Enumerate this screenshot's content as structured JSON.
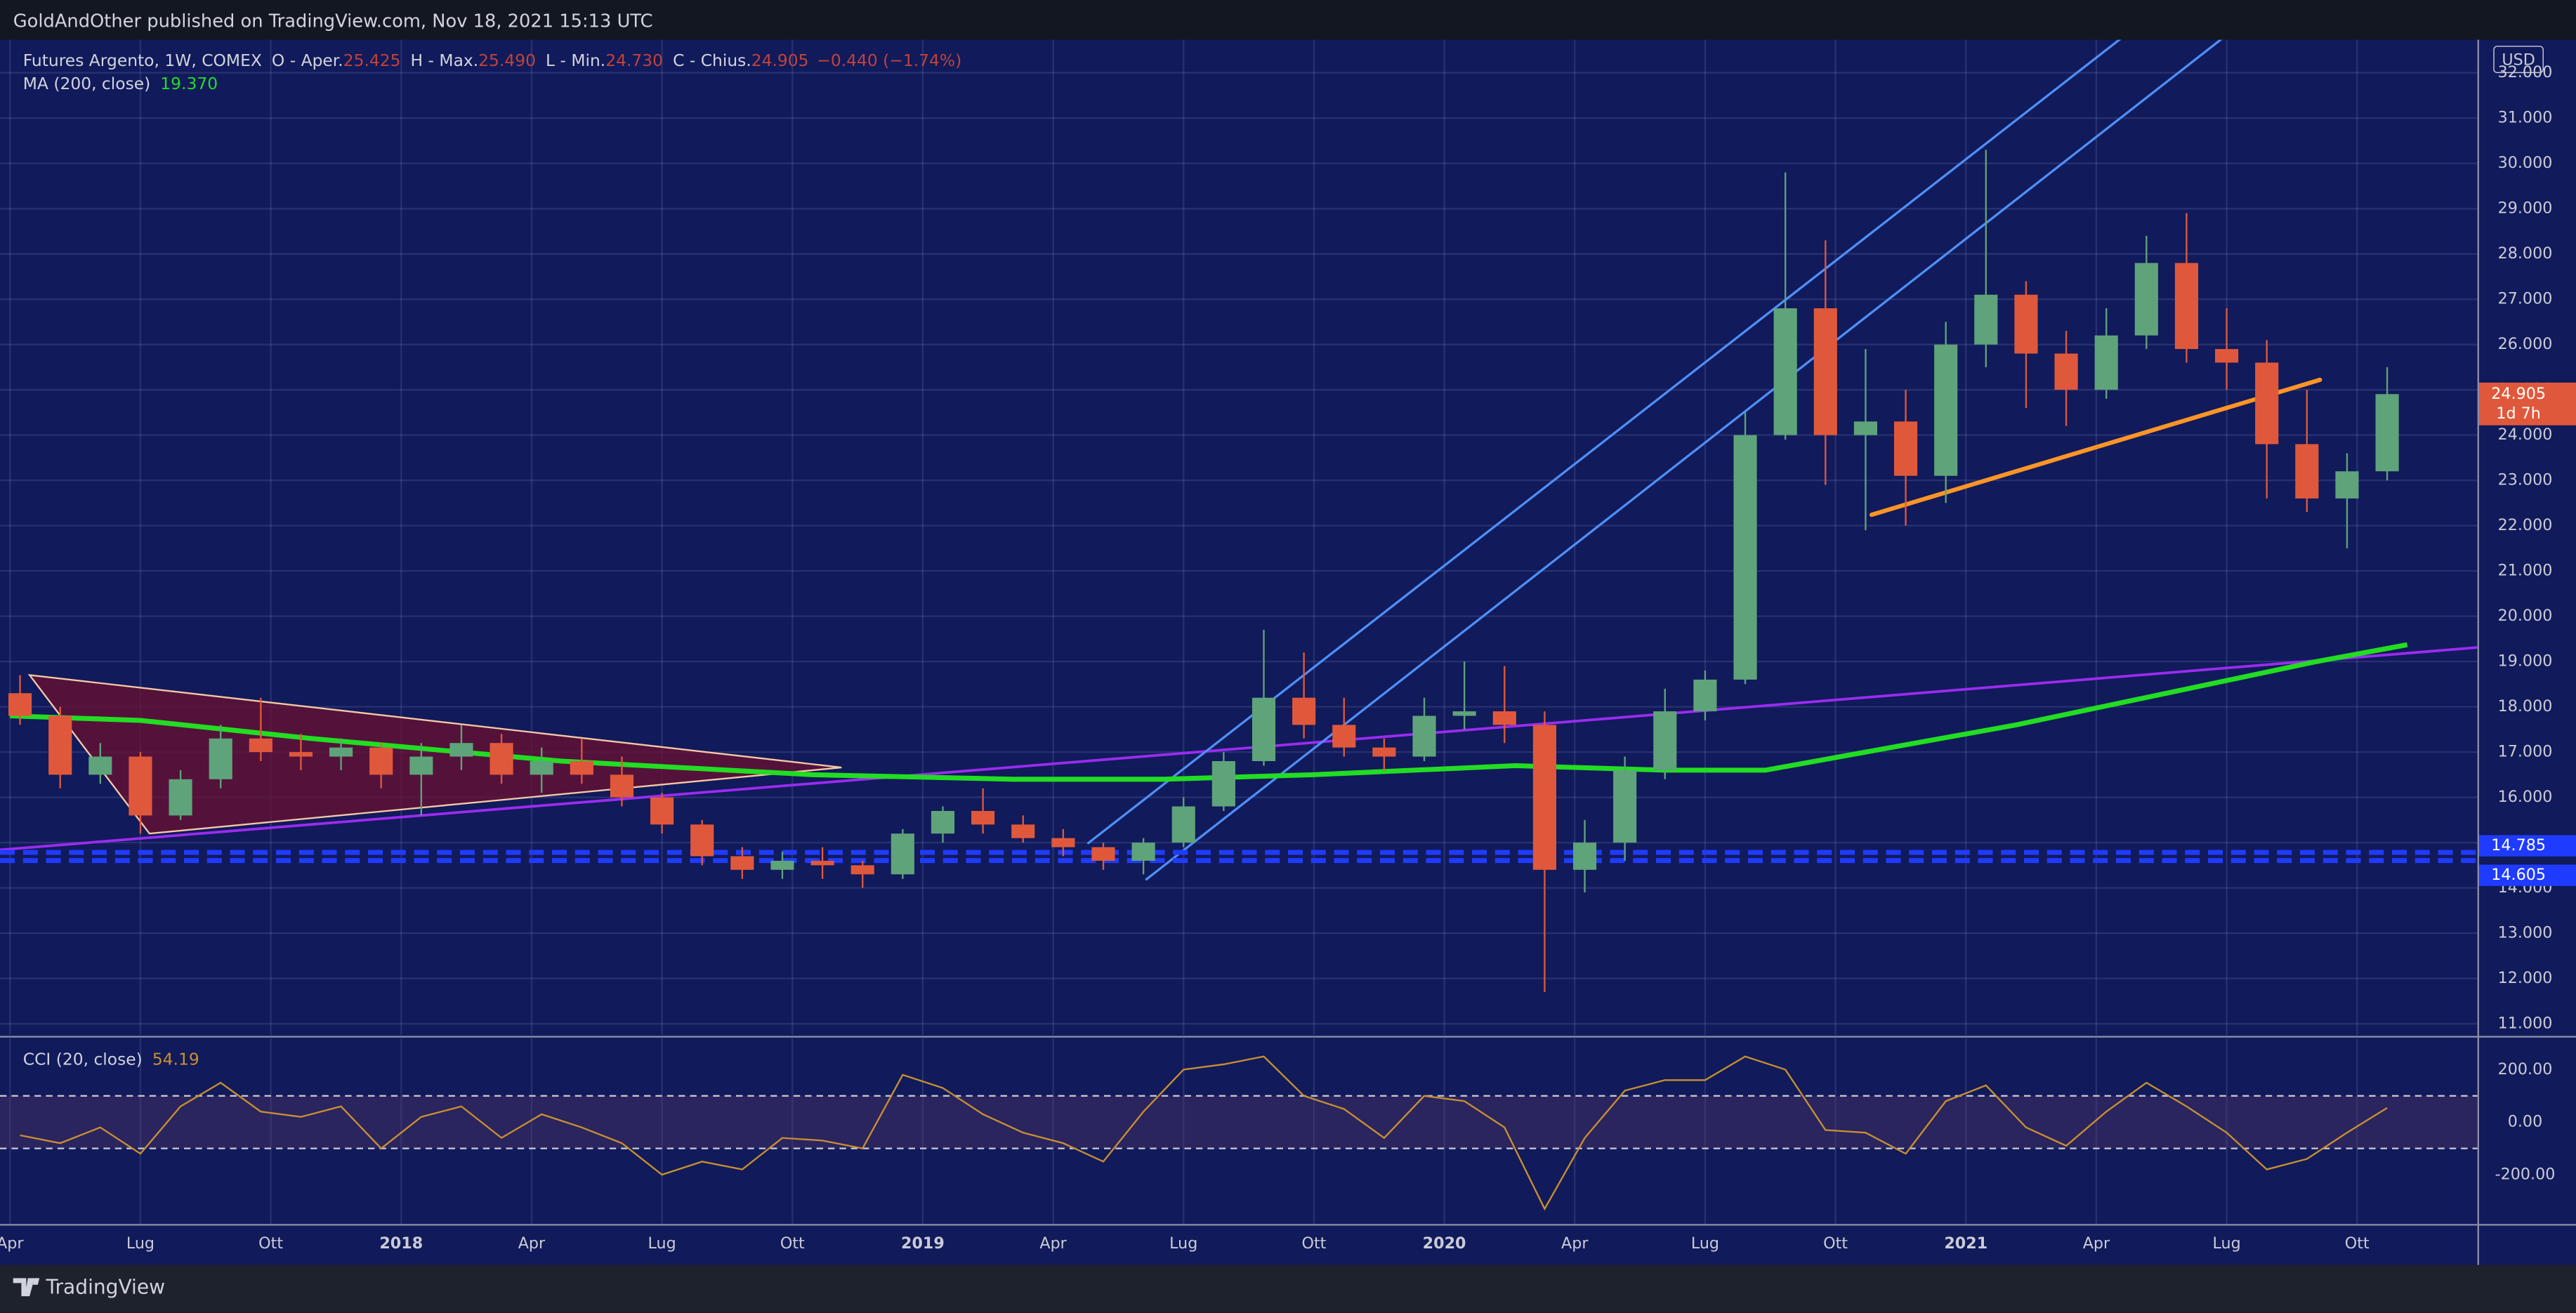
{
  "header": {
    "published": "GoldAndOther published on TradingView.com, Nov 18, 2021 15:13 UTC"
  },
  "legend": {
    "symbol": "Futures Argento, 1W, COMEX",
    "open_label": "O - Aper.",
    "open": "25.425",
    "high_label": "H - Max.",
    "high": "25.490",
    "low_label": "L - Min.",
    "low": "24.730",
    "close_label": "C - Chius.",
    "close": "24.905",
    "change": "−0.440 (−1.74%)",
    "ma_label": "MA (200, close)",
    "ma_value": "19.370"
  },
  "footer": {
    "brand": "TradingView"
  },
  "chart_data": {
    "type": "candlestick",
    "currency": "USD",
    "up_color": "#5fa37a",
    "down_color": "#e0583b",
    "x": [
      1,
      5,
      9,
      13,
      17,
      21,
      25,
      29,
      33,
      37,
      41,
      45,
      49,
      53,
      57,
      61,
      65,
      69,
      73,
      77,
      81,
      85,
      89,
      93,
      97,
      101,
      105,
      109,
      113,
      117,
      121,
      125,
      129,
      133,
      137,
      141,
      145,
      149,
      153,
      157,
      161,
      165,
      169,
      173,
      177,
      181,
      185,
      189,
      193,
      197,
      201,
      205,
      209,
      213,
      217,
      221,
      225,
      229,
      233,
      237
    ],
    "open": [
      18.3,
      17.8,
      16.5,
      16.9,
      15.6,
      16.4,
      17.3,
      17.0,
      16.9,
      17.1,
      16.5,
      16.9,
      17.2,
      16.5,
      16.8,
      16.5,
      16.0,
      15.4,
      14.7,
      14.4,
      14.6,
      14.5,
      14.3,
      15.2,
      15.7,
      15.4,
      15.1,
      14.9,
      14.6,
      15.0,
      15.8,
      16.8,
      18.2,
      17.6,
      17.1,
      16.9,
      17.8,
      17.9,
      17.6,
      14.4,
      15.0,
      16.6,
      17.9,
      18.6,
      24.0,
      26.8,
      24.0,
      24.3,
      23.1,
      26.0,
      27.1,
      25.8,
      25.0,
      26.2,
      27.8,
      25.9,
      25.6,
      23.8,
      22.6,
      23.2
    ],
    "high": [
      18.7,
      18.0,
      17.2,
      17.0,
      16.6,
      17.6,
      18.2,
      17.4,
      17.3,
      17.2,
      17.2,
      17.6,
      17.4,
      17.1,
      17.3,
      16.9,
      16.1,
      15.5,
      14.9,
      14.8,
      14.9,
      14.6,
      15.3,
      15.8,
      16.2,
      15.6,
      15.3,
      15.0,
      15.1,
      16.0,
      17.0,
      19.7,
      19.2,
      18.2,
      17.3,
      18.2,
      19.0,
      18.9,
      17.9,
      15.5,
      16.9,
      18.4,
      18.8,
      24.5,
      29.8,
      28.3,
      25.9,
      25.0,
      26.5,
      30.3,
      27.4,
      26.3,
      26.8,
      28.4,
      28.9,
      26.8,
      26.1,
      25.0,
      23.6,
      25.5
    ],
    "low": [
      17.6,
      16.2,
      16.3,
      15.2,
      15.5,
      16.2,
      16.8,
      16.6,
      16.6,
      16.2,
      15.6,
      16.6,
      16.3,
      16.1,
      16.3,
      15.8,
      15.2,
      14.5,
      14.2,
      14.2,
      14.2,
      14.0,
      14.2,
      15.0,
      15.2,
      15.0,
      14.7,
      14.4,
      14.3,
      14.9,
      15.7,
      16.7,
      17.3,
      16.9,
      16.6,
      16.8,
      17.5,
      17.2,
      11.7,
      13.9,
      14.6,
      16.4,
      17.7,
      18.5,
      23.9,
      22.9,
      21.9,
      22.0,
      22.5,
      25.5,
      24.6,
      24.2,
      24.8,
      25.9,
      25.6,
      25.0,
      22.6,
      22.3,
      21.5,
      23.0
    ],
    "close": [
      17.8,
      16.5,
      16.9,
      15.6,
      16.4,
      17.3,
      17.0,
      16.9,
      17.1,
      16.5,
      16.9,
      17.2,
      16.5,
      16.8,
      16.5,
      16.0,
      15.4,
      14.7,
      14.4,
      14.6,
      14.5,
      14.3,
      15.2,
      15.7,
      15.4,
      15.1,
      14.9,
      14.6,
      15.0,
      15.8,
      16.8,
      18.2,
      17.6,
      17.1,
      16.9,
      17.8,
      17.9,
      17.6,
      14.4,
      15.0,
      16.6,
      17.9,
      18.6,
      24.0,
      26.8,
      24.0,
      24.3,
      23.1,
      26.0,
      27.1,
      25.8,
      25.0,
      26.2,
      27.8,
      25.9,
      25.6,
      23.8,
      22.6,
      23.2,
      24.905
    ],
    "xlim": [
      -1,
      246
    ],
    "xticks": [
      {
        "value": 0,
        "label": "Apr"
      },
      {
        "value": 13,
        "label": "Lug"
      },
      {
        "value": 26,
        "label": "Ott"
      },
      {
        "value": 39,
        "label": "2018"
      },
      {
        "value": 52,
        "label": "Apr"
      },
      {
        "value": 65,
        "label": "Lug"
      },
      {
        "value": 78,
        "label": "Ott"
      },
      {
        "value": 91,
        "label": "2019"
      },
      {
        "value": 104,
        "label": "Apr"
      },
      {
        "value": 117,
        "label": "Lug"
      },
      {
        "value": 130,
        "label": "Ott"
      },
      {
        "value": 143,
        "label": "2020"
      },
      {
        "value": 156,
        "label": "Apr"
      },
      {
        "value": 169,
        "label": "Lug"
      },
      {
        "value": 182,
        "label": "Ott"
      },
      {
        "value": 195,
        "label": "2021"
      },
      {
        "value": 208,
        "label": "Apr"
      },
      {
        "value": 221,
        "label": "Lug"
      },
      {
        "value": 234,
        "label": "Ott"
      }
    ],
    "ylim": [
      10.75,
      32.73
    ],
    "yticks": [
      {
        "value": 11,
        "label": "11.000"
      },
      {
        "value": 12,
        "label": "12.000"
      },
      {
        "value": 13,
        "label": "13.000"
      },
      {
        "value": 14,
        "label": "14.000"
      },
      {
        "value": 15,
        "label": "15.000"
      },
      {
        "value": 16,
        "label": "16.000"
      },
      {
        "value": 17,
        "label": "17.000"
      },
      {
        "value": 18,
        "label": "18.000"
      },
      {
        "value": 19,
        "label": "19.000"
      },
      {
        "value": 20,
        "label": "20.000"
      },
      {
        "value": 21,
        "label": "21.000"
      },
      {
        "value": 22,
        "label": "22.000"
      },
      {
        "value": 23,
        "label": "23.000"
      },
      {
        "value": 24,
        "label": "24.000"
      },
      {
        "value": 25,
        "label": "25.000"
      },
      {
        "value": 26,
        "label": "26.000"
      },
      {
        "value": 27,
        "label": "27.000"
      },
      {
        "value": 28,
        "label": "28.000"
      },
      {
        "value": 29,
        "label": "29.000"
      },
      {
        "value": 30,
        "label": "30.000"
      },
      {
        "value": 31,
        "label": "31.000"
      },
      {
        "value": 32,
        "label": "32.000"
      }
    ],
    "grid": true,
    "last_price": {
      "value": 24.905,
      "label": "24.905",
      "countdown": "1d 7h",
      "color": "#e0583b"
    },
    "levels": [
      {
        "value": 14.785,
        "label": "14.785"
      },
      {
        "value": 14.605,
        "label": "14.605"
      }
    ],
    "level_color": "#1f3bff",
    "ma": {
      "color": "#22dd22",
      "x": [
        0,
        13,
        30,
        55,
        80,
        100,
        115,
        130,
        150,
        165,
        175,
        185,
        200,
        215,
        230,
        239
      ],
      "values": [
        17.8,
        17.7,
        17.3,
        16.8,
        16.5,
        16.4,
        16.4,
        16.5,
        16.7,
        16.6,
        16.6,
        17.0,
        17.6,
        18.3,
        19.0,
        19.37
      ]
    },
    "drawings": {
      "triangle": {
        "points": [
          [
            1.95,
            18.7
          ],
          [
            13.9,
            15.2
          ],
          [
            82.9,
            16.66
          ]
        ],
        "color": "#f4c9a8",
        "fill": "#6b1030"
      },
      "lines": [
        {
          "points": [
            [
              -1,
              14.84
            ],
            [
              246,
              19.31
            ]
          ],
          "color": "#9a2cf0",
          "width": 1.6
        },
        {
          "points": [
            [
              107.5,
              14.99
            ],
            [
              210.7,
              32.8
            ]
          ],
          "color": "#4f8ff7",
          "width": 1.4
        },
        {
          "points": [
            [
              113.3,
              14.19
            ],
            [
              220.8,
              32.8
            ]
          ],
          "color": "#4f8ff7",
          "width": 1.4
        },
        {
          "points": [
            [
              185.6,
              22.24
            ],
            [
              230.3,
              25.22
            ]
          ],
          "color": "#ff9526",
          "width": 2.6
        }
      ]
    },
    "indicator": {
      "title": "CCI (20, close)",
      "value_label": "54.19",
      "color": "#c8902f",
      "values": [
        -50,
        -80,
        -20,
        -120,
        60,
        150,
        40,
        20,
        60,
        -100,
        20,
        60,
        -60,
        30,
        -20,
        -80,
        -200,
        -150,
        -180,
        -60,
        -70,
        -100,
        180,
        130,
        30,
        -40,
        -80,
        -150,
        40,
        200,
        220,
        250,
        100,
        50,
        -60,
        100,
        80,
        -20,
        -330,
        -60,
        120,
        160,
        160,
        250,
        200,
        -30,
        -40,
        -120,
        80,
        140,
        -20,
        -90,
        40,
        150,
        60,
        -40,
        -180,
        -140,
        -40,
        54.19
      ],
      "ylim": [
        -387.5,
        318.75
      ],
      "yticks": [
        {
          "value": 200,
          "label": "200.00"
        },
        {
          "value": 0,
          "label": "0.00"
        },
        {
          "value": -200,
          "label": "-200.00"
        }
      ],
      "bands": [
        100,
        -100
      ]
    }
  }
}
